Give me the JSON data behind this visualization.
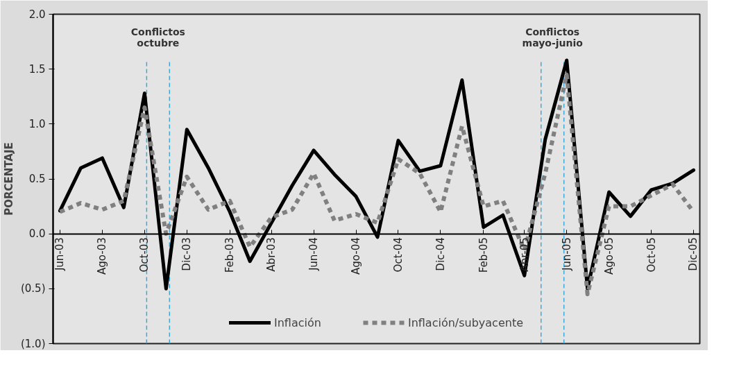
{
  "chart_data": {
    "type": "line",
    "ylabel": "PORCENTAJE",
    "x": [
      "2003-06",
      "2003-07",
      "2003-08",
      "2003-09",
      "2003-10",
      "2003-11",
      "2003-12",
      "2004-01",
      "2004-02",
      "2004-03",
      "2004-04",
      "2004-05",
      "2004-06",
      "2004-07",
      "2004-08",
      "2004-09",
      "2004-10",
      "2004-11",
      "2004-12",
      "2005-01",
      "2005-02",
      "2005-03",
      "2005-04",
      "2005-05",
      "2005-06",
      "2005-07",
      "2005-08",
      "2005-09",
      "2005-10",
      "2005-11",
      "2005-12"
    ],
    "xlim": [
      "2003-05-22",
      "2005-12-10"
    ],
    "xticks": [
      {
        "value": "2003-06",
        "label": "Jun-03"
      },
      {
        "value": "2003-08",
        "label": "Ago-03"
      },
      {
        "value": "2003-10",
        "label": "Oct-03"
      },
      {
        "value": "2003-12",
        "label": "Dic-03"
      },
      {
        "value": "2004-02",
        "label": "Feb-03"
      },
      {
        "value": "2004-04",
        "label": "Abr-03"
      },
      {
        "value": "2004-06",
        "label": "Jun-04"
      },
      {
        "value": "2004-08",
        "label": "Ago-04"
      },
      {
        "value": "2004-10",
        "label": "Oct-04"
      },
      {
        "value": "2004-12",
        "label": "Dic-04"
      },
      {
        "value": "2005-02",
        "label": "Feb-05"
      },
      {
        "value": "2005-04",
        "label": "Abr-05"
      },
      {
        "value": "2005-06",
        "label": "Jun-05"
      },
      {
        "value": "2005-08",
        "label": "Ago-05"
      },
      {
        "value": "2005-10",
        "label": "Oct-05"
      },
      {
        "value": "2005-12",
        "label": "Dic-05"
      }
    ],
    "ylim": [
      -1.0,
      2.0
    ],
    "yticks": [
      {
        "value": -1.0,
        "label": "(1.0)"
      },
      {
        "value": -0.5,
        "label": "(0.5)"
      },
      {
        "value": 0.0,
        "label": "0.0"
      },
      {
        "value": 0.5,
        "label": "0.5"
      },
      {
        "value": 1.0,
        "label": "1.0"
      },
      {
        "value": 1.5,
        "label": "1.5"
      },
      {
        "value": 2.0,
        "label": "2.0"
      }
    ],
    "series": [
      {
        "name": "Inflación",
        "color": "#000000",
        "line_style": "solid",
        "values": [
          0.21,
          0.6,
          0.69,
          0.24,
          1.28,
          -0.5,
          0.95,
          0.6,
          0.2,
          -0.25,
          0.1,
          0.44,
          0.76,
          0.54,
          0.34,
          -0.03,
          0.85,
          0.57,
          0.62,
          1.4,
          0.06,
          0.17,
          -0.38,
          0.86,
          1.58,
          -0.5,
          0.38,
          0.16,
          0.4,
          0.46,
          0.58
        ]
      },
      {
        "name": "Inflación/subyacente",
        "color": "#808080",
        "line_style": "dotted",
        "values": [
          0.2,
          0.28,
          0.22,
          0.3,
          1.15,
          0.0,
          0.52,
          0.22,
          0.3,
          -0.12,
          0.15,
          0.22,
          0.55,
          0.12,
          0.18,
          0.1,
          0.68,
          0.55,
          0.2,
          0.98,
          0.25,
          0.3,
          -0.15,
          0.55,
          1.45,
          -0.55,
          0.25,
          0.25,
          0.35,
          0.45,
          0.2
        ]
      }
    ],
    "ref_lines": [
      {
        "axis": "x",
        "value": "2003-10-04",
        "color": "#3aa8d8",
        "line_style": "dashed"
      },
      {
        "axis": "x",
        "value": "2003-11-06",
        "color": "#3aa8d8",
        "line_style": "dashed"
      },
      {
        "axis": "x",
        "value": "2005-04-25",
        "color": "#3aa8d8",
        "line_style": "dashed"
      },
      {
        "axis": "x",
        "value": "2005-05-28",
        "color": "#3aa8d8",
        "line_style": "dashed"
      }
    ],
    "annotations": [
      "Conflictos\noctubre",
      "Conflictos\nmayo-junio"
    ],
    "grid": false,
    "legend": "bottom"
  }
}
